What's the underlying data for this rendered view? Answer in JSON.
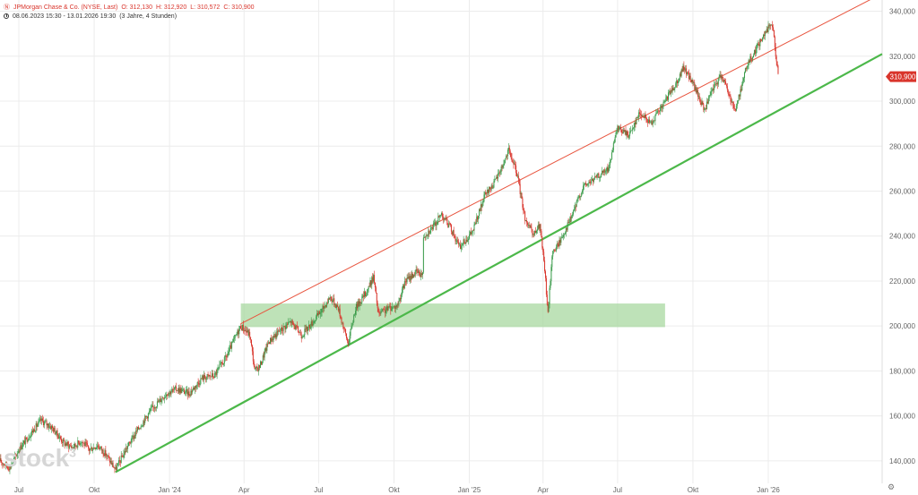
{
  "header": {
    "flag": "Ⓝ",
    "instrument": "JPMorgan Chase & Co. (NYSE, Last)",
    "open": "O: 312,130",
    "high": "H: 312,920",
    "low": "L: 310,572",
    "close": "C: 310,900",
    "period": "08.06.2023 15:30 - 13.01.2026 19:30",
    "interval": "(3 Jahre, 4 Stunden)"
  },
  "watermark": {
    "text": "stock",
    "sup": "3"
  },
  "colors": {
    "up": "#3a9b4a",
    "down": "#d9342b",
    "support_line": "#4cb84a",
    "resistance_line": "#e8553f",
    "zone": "#a8d8a0",
    "price_badge": "#d9342b",
    "grid": "#ececec"
  },
  "icons": {
    "clock": "clock-icon",
    "scale_toggle": "scale-toggle-icon"
  },
  "chart_data": {
    "type": "candlestick",
    "title": "JPMorgan Chase & Co. (NYSE, Last)",
    "last_price": 310.9,
    "last_price_label": "310,900",
    "ylim": [
      130,
      345
    ],
    "y_ticks": [
      140,
      160,
      180,
      200,
      220,
      240,
      260,
      280,
      300,
      320,
      340
    ],
    "y_tick_labels": [
      "140,000",
      "160,000",
      "180,000",
      "200,000",
      "220,000",
      "240,000",
      "260,000",
      "280,000",
      "300,000",
      "320,000",
      "340,000"
    ],
    "x_range": [
      "2023-06-08",
      "2026-05-20"
    ],
    "x_ticks": [
      {
        "label": "Jul",
        "date": "2023-07-01"
      },
      {
        "label": "Okt",
        "date": "2023-10-01"
      },
      {
        "label": "Jan '24",
        "date": "2024-01-01"
      },
      {
        "label": "Apr",
        "date": "2024-04-01"
      },
      {
        "label": "Jul",
        "date": "2024-07-01"
      },
      {
        "label": "Okt",
        "date": "2024-10-01"
      },
      {
        "label": "Jan '25",
        "date": "2025-01-01"
      },
      {
        "label": "Apr",
        "date": "2025-04-01"
      },
      {
        "label": "Jul",
        "date": "2025-07-01"
      },
      {
        "label": "Okt",
        "date": "2025-10-01"
      },
      {
        "label": "Jan '26",
        "date": "2026-01-01"
      }
    ],
    "grid": true,
    "price_path": [
      {
        "d": "2023-06-08",
        "p": 140
      },
      {
        "d": "2023-06-20",
        "p": 137
      },
      {
        "d": "2023-07-01",
        "p": 145
      },
      {
        "d": "2023-07-15",
        "p": 152
      },
      {
        "d": "2023-07-28",
        "p": 158
      },
      {
        "d": "2023-08-10",
        "p": 155
      },
      {
        "d": "2023-08-25",
        "p": 148
      },
      {
        "d": "2023-09-05",
        "p": 146
      },
      {
        "d": "2023-09-15",
        "p": 149
      },
      {
        "d": "2023-09-25",
        "p": 145
      },
      {
        "d": "2023-10-05",
        "p": 147
      },
      {
        "d": "2023-10-15",
        "p": 143
      },
      {
        "d": "2023-10-27",
        "p": 136
      },
      {
        "d": "2023-11-10",
        "p": 146
      },
      {
        "d": "2023-11-25",
        "p": 155
      },
      {
        "d": "2023-12-10",
        "p": 163
      },
      {
        "d": "2023-12-28",
        "p": 170
      },
      {
        "d": "2024-01-10",
        "p": 172
      },
      {
        "d": "2024-01-25",
        "p": 170
      },
      {
        "d": "2024-02-10",
        "p": 177
      },
      {
        "d": "2024-02-25",
        "p": 178
      },
      {
        "d": "2024-03-10",
        "p": 186
      },
      {
        "d": "2024-03-20",
        "p": 194
      },
      {
        "d": "2024-03-28",
        "p": 200
      },
      {
        "d": "2024-04-08",
        "p": 196
      },
      {
        "d": "2024-04-14",
        "p": 180
      },
      {
        "d": "2024-04-20",
        "p": 182
      },
      {
        "d": "2024-05-01",
        "p": 193
      },
      {
        "d": "2024-05-15",
        "p": 198
      },
      {
        "d": "2024-05-28",
        "p": 202
      },
      {
        "d": "2024-06-10",
        "p": 196
      },
      {
        "d": "2024-06-20",
        "p": 200
      },
      {
        "d": "2024-07-05",
        "p": 207
      },
      {
        "d": "2024-07-15",
        "p": 213
      },
      {
        "d": "2024-07-25",
        "p": 208
      },
      {
        "d": "2024-08-06",
        "p": 192
      },
      {
        "d": "2024-08-15",
        "p": 208
      },
      {
        "d": "2024-08-28",
        "p": 215
      },
      {
        "d": "2024-09-06",
        "p": 222
      },
      {
        "d": "2024-09-12",
        "p": 205
      },
      {
        "d": "2024-09-25",
        "p": 208
      },
      {
        "d": "2024-10-05",
        "p": 209
      },
      {
        "d": "2024-10-15",
        "p": 220
      },
      {
        "d": "2024-10-28",
        "p": 224
      },
      {
        "d": "2024-11-05",
        "p": 223
      },
      {
        "d": "2024-11-06",
        "p": 240
      },
      {
        "d": "2024-11-20",
        "p": 245
      },
      {
        "d": "2024-11-28",
        "p": 250
      },
      {
        "d": "2024-12-10",
        "p": 243
      },
      {
        "d": "2024-12-20",
        "p": 235
      },
      {
        "d": "2025-01-05",
        "p": 242
      },
      {
        "d": "2025-01-20",
        "p": 258
      },
      {
        "d": "2025-02-01",
        "p": 264
      },
      {
        "d": "2025-02-10",
        "p": 271
      },
      {
        "d": "2025-02-18",
        "p": 278
      },
      {
        "d": "2025-02-28",
        "p": 268
      },
      {
        "d": "2025-03-10",
        "p": 248
      },
      {
        "d": "2025-03-20",
        "p": 240
      },
      {
        "d": "2025-03-28",
        "p": 245
      },
      {
        "d": "2025-04-03",
        "p": 225
      },
      {
        "d": "2025-04-07",
        "p": 205
      },
      {
        "d": "2025-04-12",
        "p": 232
      },
      {
        "d": "2025-04-22",
        "p": 238
      },
      {
        "d": "2025-05-05",
        "p": 248
      },
      {
        "d": "2025-05-20",
        "p": 262
      },
      {
        "d": "2025-06-05",
        "p": 266
      },
      {
        "d": "2025-06-20",
        "p": 270
      },
      {
        "d": "2025-07-01",
        "p": 288
      },
      {
        "d": "2025-07-15",
        "p": 285
      },
      {
        "d": "2025-07-28",
        "p": 295
      },
      {
        "d": "2025-08-10",
        "p": 290
      },
      {
        "d": "2025-08-25",
        "p": 298
      },
      {
        "d": "2025-09-10",
        "p": 308
      },
      {
        "d": "2025-09-20",
        "p": 315
      },
      {
        "d": "2025-10-01",
        "p": 308
      },
      {
        "d": "2025-10-15",
        "p": 296
      },
      {
        "d": "2025-10-25",
        "p": 305
      },
      {
        "d": "2025-11-05",
        "p": 312
      },
      {
        "d": "2025-11-15",
        "p": 302
      },
      {
        "d": "2025-11-22",
        "p": 296
      },
      {
        "d": "2025-12-05",
        "p": 315
      },
      {
        "d": "2025-12-15",
        "p": 322
      },
      {
        "d": "2025-12-28",
        "p": 330
      },
      {
        "d": "2026-01-05",
        "p": 335
      },
      {
        "d": "2026-01-08",
        "p": 328
      },
      {
        "d": "2026-01-13",
        "p": 310.9
      }
    ],
    "annotations": [
      {
        "kind": "support_line",
        "from": {
          "d": "2023-10-27",
          "p": 135
        },
        "to": {
          "d": "2026-05-20",
          "p": 321
        }
      },
      {
        "kind": "resistance_line",
        "from": {
          "d": "2024-03-28",
          "p": 201
        },
        "to": {
          "d": "2026-05-10",
          "p": 346
        }
      },
      {
        "kind": "zone",
        "from": "2024-03-28",
        "to": "2025-08-28",
        "low": 199.5,
        "high": 210
      }
    ]
  }
}
